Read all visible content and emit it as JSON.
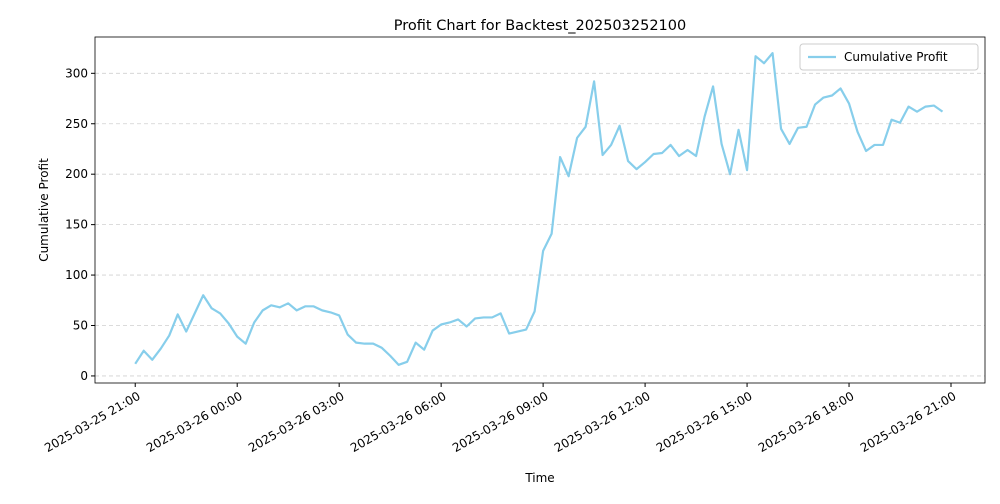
{
  "chart_data": {
    "type": "line",
    "title": "Profit Chart for Backtest_202503252100",
    "xlabel": "Time",
    "ylabel": "Cumulative Profit",
    "x": [
      "2025-03-25 21:00",
      "2025-03-25 21:15",
      "2025-03-25 21:30",
      "2025-03-25 21:45",
      "2025-03-25 22:00",
      "2025-03-25 22:15",
      "2025-03-25 22:30",
      "2025-03-25 22:45",
      "2025-03-25 23:00",
      "2025-03-25 23:15",
      "2025-03-25 23:30",
      "2025-03-25 23:45",
      "2025-03-26 00:00",
      "2025-03-26 00:15",
      "2025-03-26 00:30",
      "2025-03-26 00:45",
      "2025-03-26 01:00",
      "2025-03-26 01:15",
      "2025-03-26 01:30",
      "2025-03-26 01:45",
      "2025-03-26 02:00",
      "2025-03-26 02:15",
      "2025-03-26 02:30",
      "2025-03-26 02:45",
      "2025-03-26 03:00",
      "2025-03-26 03:15",
      "2025-03-26 03:30",
      "2025-03-26 03:45",
      "2025-03-26 04:00",
      "2025-03-26 04:15",
      "2025-03-26 04:30",
      "2025-03-26 04:45",
      "2025-03-26 05:00",
      "2025-03-26 05:15",
      "2025-03-26 05:30",
      "2025-03-26 05:45",
      "2025-03-26 06:00",
      "2025-03-26 06:15",
      "2025-03-26 06:30",
      "2025-03-26 06:45",
      "2025-03-26 07:00",
      "2025-03-26 07:15",
      "2025-03-26 07:30",
      "2025-03-26 07:45",
      "2025-03-26 08:00",
      "2025-03-26 08:15",
      "2025-03-26 08:30",
      "2025-03-26 08:45",
      "2025-03-26 09:00",
      "2025-03-26 09:15",
      "2025-03-26 09:30",
      "2025-03-26 09:45",
      "2025-03-26 10:00",
      "2025-03-26 10:15",
      "2025-03-26 10:30",
      "2025-03-26 10:45",
      "2025-03-26 11:00",
      "2025-03-26 11:15",
      "2025-03-26 11:30",
      "2025-03-26 11:45",
      "2025-03-26 12:00",
      "2025-03-26 12:15",
      "2025-03-26 12:30",
      "2025-03-26 12:45",
      "2025-03-26 13:00",
      "2025-03-26 13:15",
      "2025-03-26 13:30",
      "2025-03-26 13:45",
      "2025-03-26 14:00",
      "2025-03-26 14:15",
      "2025-03-26 14:30",
      "2025-03-26 14:45",
      "2025-03-26 15:00",
      "2025-03-26 15:15",
      "2025-03-26 15:30",
      "2025-03-26 15:45",
      "2025-03-26 16:00",
      "2025-03-26 16:15",
      "2025-03-26 16:30",
      "2025-03-26 16:45",
      "2025-03-26 17:00",
      "2025-03-26 17:15",
      "2025-03-26 17:30",
      "2025-03-26 17:45",
      "2025-03-26 18:00",
      "2025-03-26 18:15",
      "2025-03-26 18:30",
      "2025-03-26 18:45",
      "2025-03-26 19:00",
      "2025-03-26 19:15",
      "2025-03-26 19:30",
      "2025-03-26 19:45",
      "2025-03-26 20:00",
      "2025-03-26 20:15",
      "2025-03-26 20:30",
      "2025-03-26 20:45"
    ],
    "series": [
      {
        "name": "Cumulative Profit",
        "color": "#87ceeb",
        "values": [
          12,
          25,
          16,
          27,
          40,
          61,
          44,
          62,
          80,
          67,
          62,
          52,
          39,
          32,
          53,
          65,
          70,
          68,
          72,
          65,
          69,
          69,
          65,
          63,
          60,
          41,
          33,
          32,
          32,
          28,
          20,
          11,
          14,
          33,
          26,
          45,
          51,
          53,
          56,
          49,
          57,
          58,
          58,
          62,
          42,
          44,
          46,
          64,
          124,
          141,
          217,
          198,
          236,
          247,
          292,
          219,
          229,
          248,
          213,
          205,
          212,
          220,
          221,
          229,
          218,
          224,
          218,
          257,
          287,
          230,
          200,
          244,
          204,
          317,
          310,
          320,
          245,
          230,
          246,
          247,
          269,
          276,
          278,
          285,
          270,
          242,
          223,
          229,
          229,
          254,
          251,
          267,
          262,
          267,
          268,
          262
        ]
      }
    ],
    "xlim": [
      "2025-03-25 19:49",
      "2025-03-26 22:00"
    ],
    "xticks": [
      "2025-03-25 21:00",
      "2025-03-26 00:00",
      "2025-03-26 03:00",
      "2025-03-26 06:00",
      "2025-03-26 09:00",
      "2025-03-26 12:00",
      "2025-03-26 15:00",
      "2025-03-26 18:00",
      "2025-03-26 21:00"
    ],
    "ylim": [
      -7,
      336
    ],
    "yticks": [
      0,
      50,
      100,
      150,
      200,
      250,
      300
    ],
    "grid": "y",
    "legend": "upper right"
  }
}
